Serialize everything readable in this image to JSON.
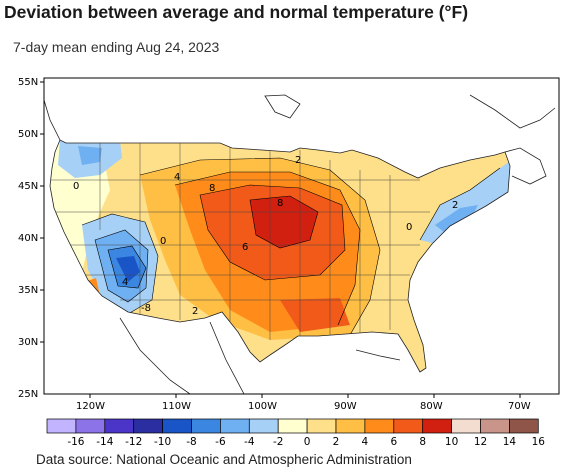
{
  "header": {
    "title": "Deviation between average and normal temperature (°F)",
    "subtitle": "7-day mean ending Aug 24, 2023"
  },
  "footer": {
    "source": "Data source: National Oceanic and Atmospheric Administration"
  },
  "map": {
    "lat_labels": [
      "55N",
      "50N",
      "45N",
      "40N",
      "35N",
      "30N",
      "25N"
    ],
    "lon_labels": [
      "120W",
      "110W",
      "100W",
      "90W",
      "80W",
      "70W"
    ],
    "contour_labels": [
      "0",
      "4",
      "8",
      "2",
      "8",
      "6",
      "0",
      "4",
      "-8",
      "2",
      "0",
      "2"
    ]
  },
  "colorbar": {
    "ticks": [
      "-16",
      "-14",
      "-12",
      "-10",
      "-8",
      "-6",
      "-4",
      "-2",
      "0",
      "2",
      "4",
      "6",
      "8",
      "10",
      "12",
      "14",
      "16"
    ],
    "colors": [
      "#c3b4ff",
      "#8d73e8",
      "#4b34c8",
      "#2b2ea0",
      "#1a55c8",
      "#3a86e0",
      "#6fb0f2",
      "#a6d0f5",
      "#ffffcf",
      "#ffe08a",
      "#ffbf45",
      "#ff8c1a",
      "#f25a1a",
      "#d22010",
      "#f3ddd0",
      "#c9958a",
      "#8e5548"
    ]
  }
}
